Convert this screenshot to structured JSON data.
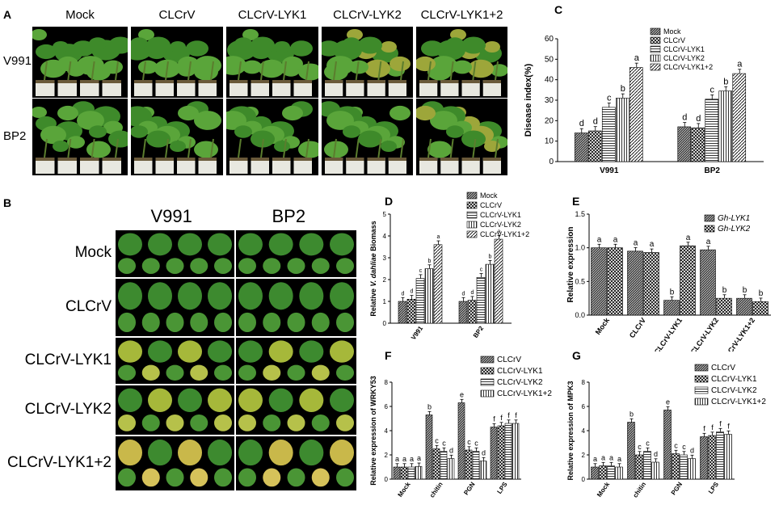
{
  "panelA": {
    "letter": "A",
    "columns": [
      "Mock",
      "CLCrV",
      "CLCrV-LYK1",
      "CLCrV-LYK2",
      "CLCrV-LYK1+2"
    ],
    "rows": [
      "V991",
      "BP2"
    ]
  },
  "panelB": {
    "letter": "B",
    "columns": [
      "V991",
      "BP2"
    ],
    "rows": [
      "Mock",
      "CLCrV",
      "CLCrV-LYK1",
      "CLCrV-LYK2",
      "CLCrV-LYK1+2"
    ]
  },
  "chart_data": [
    {
      "panel": "C",
      "type": "bar",
      "ylabel": "Disease index(%)",
      "ylim": [
        0,
        60
      ],
      "yticks": [
        0,
        10,
        20,
        30,
        40,
        50,
        60
      ],
      "categories": [
        "V991",
        "BP2"
      ],
      "series": [
        {
          "name": "Mock",
          "values": [
            14,
            17
          ],
          "letters": [
            "d",
            "d"
          ]
        },
        {
          "name": "CLCrV",
          "values": [
            15,
            16.5
          ],
          "letters": [
            "d",
            "d"
          ]
        },
        {
          "name": "CLCrV-LYK1",
          "values": [
            26.5,
            30.5
          ],
          "letters": [
            "c",
            "c"
          ]
        },
        {
          "name": "CLCrV-LYK2",
          "values": [
            31,
            34.5
          ],
          "letters": [
            "b",
            "b"
          ]
        },
        {
          "name": "CLCrV-LYK1+2",
          "values": [
            46,
            43
          ],
          "letters": [
            "a",
            "a"
          ]
        }
      ],
      "legend": "top-right"
    },
    {
      "panel": "D",
      "type": "bar",
      "ylabel": "Relative V. dahliae Biomass",
      "ylim": [
        0,
        5
      ],
      "yticks": [
        0,
        1,
        2,
        3,
        4,
        5
      ],
      "categories": [
        "V991",
        "BP2"
      ],
      "series": [
        {
          "name": "Mock",
          "values": [
            1.0,
            1.0
          ],
          "letters": [
            "d",
            "d"
          ]
        },
        {
          "name": "CLCrV",
          "values": [
            1.1,
            1.05
          ],
          "letters": [
            "d",
            "d"
          ]
        },
        {
          "name": "CLCrV-LYK1",
          "values": [
            2.05,
            2.1
          ],
          "letters": [
            "c",
            "c"
          ]
        },
        {
          "name": "CLCrV-LYK2",
          "values": [
            2.5,
            2.7
          ],
          "letters": [
            "b",
            "b"
          ]
        },
        {
          "name": "CLCrV-LYK1+2",
          "values": [
            3.6,
            3.85
          ],
          "letters": [
            "a",
            "a"
          ]
        }
      ],
      "legend": "top-right"
    },
    {
      "panel": "E",
      "type": "bar",
      "ylabel": "Relative expression",
      "ylim": [
        0,
        1.5
      ],
      "yticks": [
        "0.0",
        "0.5",
        "1.0",
        "1.5"
      ],
      "categories": [
        "Mock",
        "CLCrV",
        "CLCrV-LYK1",
        "CLCrV-LYK2",
        "CLCrV-LYK1+2"
      ],
      "series": [
        {
          "name": "Gh-LYK1",
          "values": [
            1.0,
            0.95,
            0.22,
            0.97,
            0.25
          ],
          "letters": [
            "a",
            "a",
            "b",
            "a",
            "b"
          ]
        },
        {
          "name": "Gh-LYK2",
          "values": [
            1.0,
            0.93,
            1.03,
            0.25,
            0.2
          ],
          "letters": [
            "a",
            "a",
            "a",
            "b",
            "b"
          ]
        }
      ],
      "legend": "top-right"
    },
    {
      "panel": "F",
      "type": "bar",
      "ylabel": "Relative expression of WRKY53",
      "ylim": [
        0,
        8
      ],
      "yticks": [
        0,
        2,
        4,
        6,
        8
      ],
      "categories": [
        "Mock",
        "chitin",
        "PGN",
        "LPS"
      ],
      "series": [
        {
          "name": "CLCrV",
          "values": [
            1.0,
            5.3,
            6.3,
            4.3
          ],
          "letters": [
            "a",
            "b",
            "e",
            "f"
          ]
        },
        {
          "name": "CLCrV-LYK1",
          "values": [
            1.0,
            2.5,
            2.4,
            4.4
          ],
          "letters": [
            "a",
            "c",
            "c",
            "f"
          ]
        },
        {
          "name": "CLCrV-LYK2",
          "values": [
            1.0,
            2.3,
            2.3,
            4.6
          ],
          "letters": [
            "a",
            "c",
            "c",
            "f"
          ]
        },
        {
          "name": "CLCrV-LYK1+2",
          "values": [
            1.05,
            1.7,
            1.5,
            4.6
          ],
          "letters": [
            "a",
            "d",
            "d",
            "f"
          ]
        }
      ],
      "legend": "top-right"
    },
    {
      "panel": "G",
      "type": "bar",
      "ylabel": "Relative expression of MPK3",
      "ylim": [
        0,
        8
      ],
      "yticks": [
        0,
        2,
        4,
        6,
        8
      ],
      "categories": [
        "Mock",
        "chitin",
        "PGN",
        "LPS"
      ],
      "series": [
        {
          "name": "CLCrV",
          "values": [
            1.0,
            4.7,
            5.7,
            3.5
          ],
          "letters": [
            "a",
            "b",
            "e",
            "f"
          ]
        },
        {
          "name": "CLCrV-LYK1",
          "values": [
            1.1,
            2.0,
            2.1,
            3.6
          ],
          "letters": [
            "a",
            "c",
            "c",
            "f"
          ]
        },
        {
          "name": "CLCrV-LYK2",
          "values": [
            1.1,
            2.3,
            2.0,
            3.9
          ],
          "letters": [
            "a",
            "c",
            "c",
            "f"
          ]
        },
        {
          "name": "CLCrV-LYK1+2",
          "values": [
            1.0,
            1.4,
            1.7,
            3.7
          ],
          "letters": [
            "a",
            "d",
            "d",
            "f"
          ]
        }
      ],
      "legend": "top-right"
    }
  ]
}
